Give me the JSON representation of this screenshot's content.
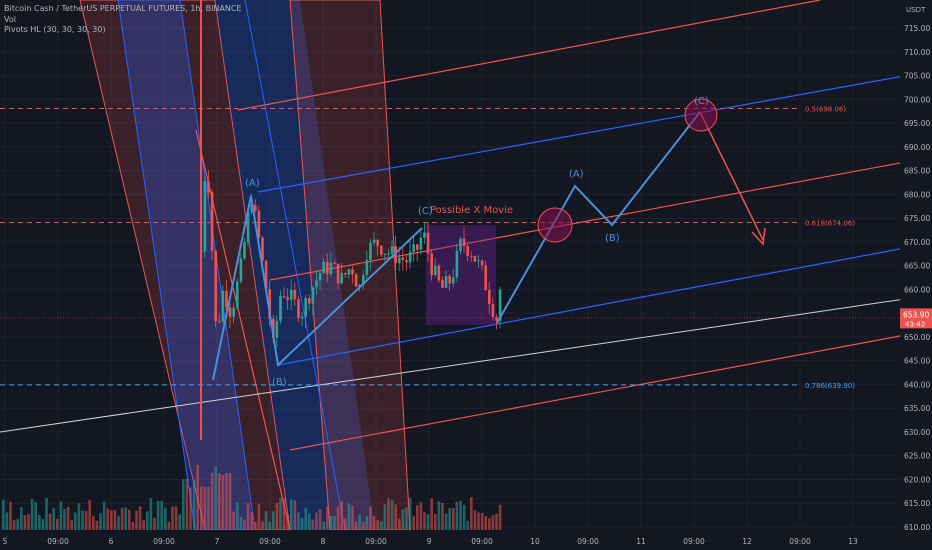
{
  "legend": {
    "symbol_line": "Bitcoin Cash / TetherUS PERPETUAL FUTURES, 1h, BINANCE",
    "volume_line": "Vol",
    "pivots_line": "Pivots HL (30, 30, 30, 30)"
  },
  "price_axis": {
    "currency": "USDT",
    "ticks": [
      "715.00",
      "710.00",
      "705.00",
      "700.00",
      "695.00",
      "690.00",
      "685.00",
      "680.00",
      "675.00",
      "670.00",
      "665.00",
      "660.00",
      "655.00",
      "650.00",
      "645.00",
      "640.00",
      "635.00",
      "630.00",
      "625.00",
      "620.00",
      "615.00",
      "610.00"
    ],
    "current_price": "653.90",
    "countdown": "43:42",
    "colors": {
      "up": "#26a69a",
      "down": "#ef5350"
    }
  },
  "time_axis": {
    "labels": [
      "5",
      "09:00",
      "6",
      "09:00",
      "7",
      "09:00",
      "8",
      "09:00",
      "9",
      "09:00",
      "10",
      "09:00",
      "11",
      "09:00",
      "12",
      "09:00",
      "13"
    ]
  },
  "fib_levels": [
    {
      "label": "0.5(698.06)",
      "price": 698.06,
      "color": "#ef5350"
    },
    {
      "label": "0.618(674.06)",
      "price": 674.06,
      "color": "#ef5350"
    },
    {
      "label": "0.786(639.90)",
      "price": 639.9,
      "color": "#42a5f5"
    }
  ],
  "annotations": {
    "possible_move": "Possible X Movie",
    "wave_a1": "(A)",
    "wave_b1": "(B)",
    "wave_c1": "(C)",
    "wave_a2": "(A)",
    "wave_b2": "(B)",
    "wave_c2": "(C)"
  },
  "colors": {
    "background": "#131722",
    "channel_red": "#f05350",
    "channel_blue": "#2962ff",
    "wave_line": "#4a90d9",
    "projection_red": "#ef5350",
    "grid": "#1e222d"
  }
}
